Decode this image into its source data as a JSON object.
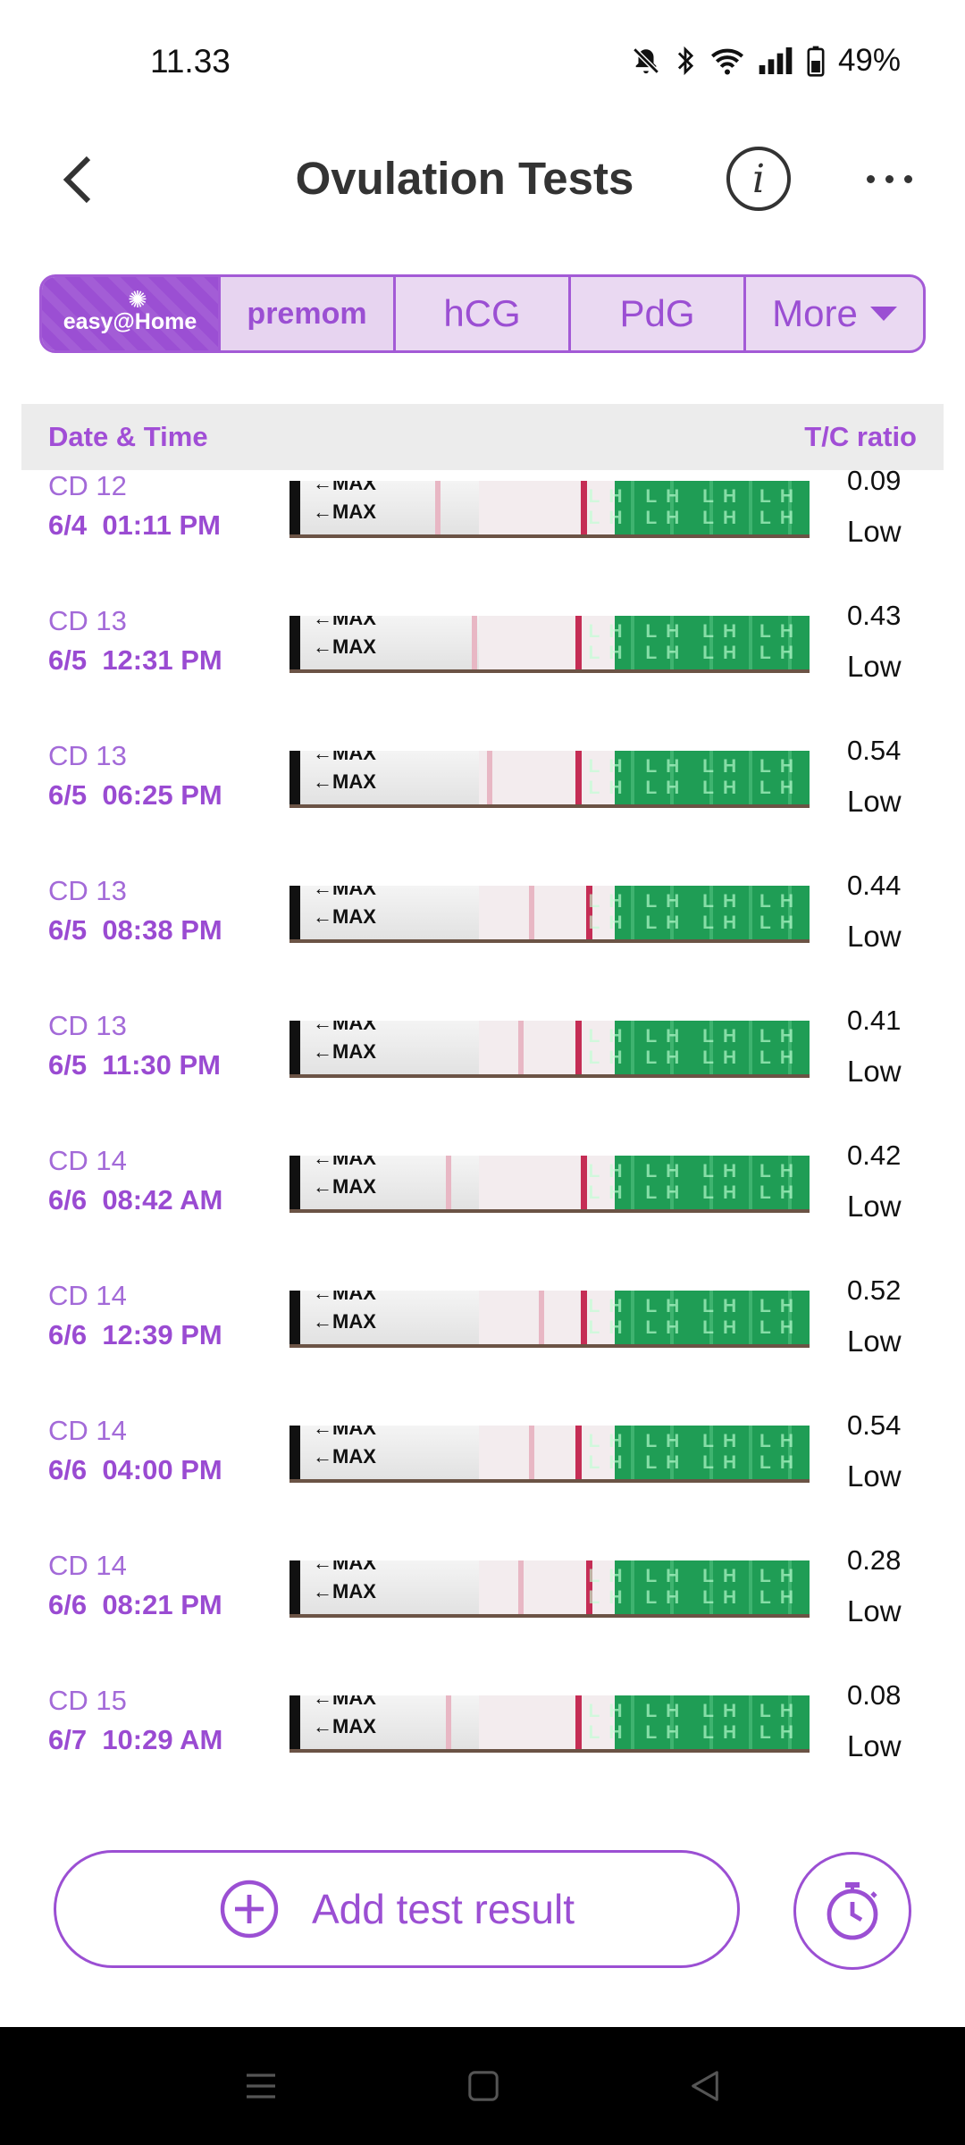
{
  "status_bar": {
    "time": "11.33",
    "battery": "49%",
    "icons": [
      "mute-bell-icon",
      "bluetooth-icon",
      "wifi-icon",
      "signal-icon",
      "battery-icon"
    ]
  },
  "header": {
    "title": "Ovulation Tests",
    "info_glyph": "i"
  },
  "tabs": {
    "easyhome": "easy@Home",
    "premom": "premom",
    "hcg": "hCG",
    "pdg": "PdG",
    "more": "More"
  },
  "table": {
    "col_date": "Date & Time",
    "col_ratio": "T/C ratio"
  },
  "rows": [
    {
      "cd": "CD 12",
      "datetime": "6/4  01:11 PM",
      "ratio": "0.09",
      "level": "Low"
    },
    {
      "cd": "CD 13",
      "datetime": "6/5  12:31 PM",
      "ratio": "0.43",
      "level": "Low"
    },
    {
      "cd": "CD 13",
      "datetime": "6/5  06:25 PM",
      "ratio": "0.54",
      "level": "Low"
    },
    {
      "cd": "CD 13",
      "datetime": "6/5  08:38 PM",
      "ratio": "0.44",
      "level": "Low"
    },
    {
      "cd": "CD 13",
      "datetime": "6/5  11:30 PM",
      "ratio": "0.41",
      "level": "Low"
    },
    {
      "cd": "CD 14",
      "datetime": "6/6  08:42 AM",
      "ratio": "0.42",
      "level": "Low"
    },
    {
      "cd": "CD 14",
      "datetime": "6/6  12:39 PM",
      "ratio": "0.52",
      "level": "Low"
    },
    {
      "cd": "CD 14",
      "datetime": "6/6  04:00 PM",
      "ratio": "0.54",
      "level": "Low"
    },
    {
      "cd": "CD 14",
      "datetime": "6/6  08:21 PM",
      "ratio": "0.28",
      "level": "Low"
    },
    {
      "cd": "CD 15",
      "datetime": "6/7  10:29 AM",
      "ratio": "0.08",
      "level": "Low"
    }
  ],
  "strip_labels": {
    "max": "←MAX",
    "lh": "LH LH LH LH\nLH LH LH LH"
  },
  "actions": {
    "add_label": "Add test result"
  },
  "colors": {
    "accent": "#9b4fd3",
    "header_bg": "#ececec",
    "strip_green": "#1f9d55",
    "control_line": "#c52d55"
  }
}
